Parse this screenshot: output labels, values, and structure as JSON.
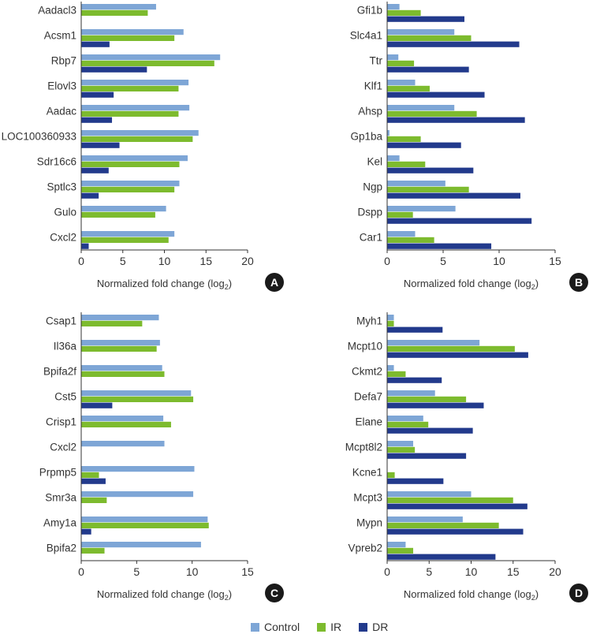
{
  "colors": {
    "Control": "#7ea6d6",
    "IR": "#7dbb2e",
    "DR": "#223a8c",
    "axis": "#333333",
    "text": "#333333"
  },
  "legend": [
    "Control",
    "IR",
    "DR"
  ],
  "chart_data": [
    {
      "panel": "A",
      "type": "bar",
      "orientation": "horizontal",
      "xlabel": "Normalized fold change (log",
      "xlabel_sub": "2",
      "xlabel_end": ")",
      "xlim": [
        0,
        20
      ],
      "xticks": [
        0,
        5,
        10,
        15,
        20
      ],
      "categories": [
        "Aadacl3",
        "Acsm1",
        "Rbp7",
        "Elovl3",
        "Aadac",
        "LOC100360933",
        "Sdr16c6",
        "Sptlc3",
        "Gulo",
        "Cxcl2"
      ],
      "series": [
        {
          "name": "Control",
          "values": [
            9.0,
            12.3,
            16.7,
            12.9,
            13.0,
            14.1,
            12.8,
            11.8,
            10.2,
            11.2
          ]
        },
        {
          "name": "IR",
          "values": [
            8.0,
            11.2,
            16.0,
            11.7,
            11.7,
            13.4,
            11.8,
            11.2,
            8.9,
            10.5
          ]
        },
        {
          "name": "DR",
          "values": [
            0,
            3.4,
            7.9,
            3.9,
            3.7,
            4.6,
            3.3,
            2.1,
            0,
            0.9
          ]
        }
      ]
    },
    {
      "panel": "B",
      "type": "bar",
      "orientation": "horizontal",
      "xlabel": "Normalized fold change (log",
      "xlabel_sub": "2",
      "xlabel_end": ")",
      "xlim": [
        0,
        15
      ],
      "xticks": [
        0,
        5,
        10,
        15
      ],
      "categories": [
        "Gfi1b",
        "Slc4a1",
        "Ttr",
        "Klf1",
        "Ahsp",
        "Gp1ba",
        "Kel",
        "Ngp",
        "Dspp",
        "Car1"
      ],
      "series": [
        {
          "name": "Control",
          "values": [
            1.1,
            6.0,
            1.0,
            2.5,
            6.0,
            0.2,
            1.1,
            5.2,
            6.1,
            2.5
          ]
        },
        {
          "name": "IR",
          "values": [
            3.0,
            7.5,
            2.4,
            3.8,
            8.0,
            3.0,
            3.4,
            7.3,
            2.3,
            4.2
          ]
        },
        {
          "name": "DR",
          "values": [
            6.9,
            11.8,
            7.3,
            8.7,
            12.3,
            6.6,
            7.7,
            11.9,
            12.9,
            9.3
          ]
        }
      ]
    },
    {
      "panel": "C",
      "type": "bar",
      "orientation": "horizontal",
      "xlabel": "Normalized fold change (log",
      "xlabel_sub": "2",
      "xlabel_end": ")",
      "xlim": [
        0,
        15
      ],
      "xticks": [
        0,
        5,
        10,
        15
      ],
      "categories": [
        "Csap1",
        "Il36a",
        "Bpifa2f",
        "Cst5",
        "Crisp1",
        "Cxcl2",
        "Prpmp5",
        "Smr3a",
        "Amy1a",
        "Bpifa2"
      ],
      "series": [
        {
          "name": "Control",
          "values": [
            7.0,
            7.1,
            7.3,
            9.9,
            7.4,
            7.5,
            10.2,
            10.1,
            11.4,
            10.8
          ]
        },
        {
          "name": "IR",
          "values": [
            5.5,
            6.8,
            7.5,
            10.1,
            8.1,
            0,
            1.6,
            2.3,
            11.5,
            2.1
          ]
        },
        {
          "name": "DR",
          "values": [
            0,
            0,
            0,
            2.8,
            0,
            0,
            2.2,
            0,
            0.9,
            0
          ]
        }
      ]
    },
    {
      "panel": "D",
      "type": "bar",
      "orientation": "horizontal",
      "xlabel": "Normalized fold change (log",
      "xlabel_sub": "2",
      "xlabel_end": ")",
      "xlim": [
        0,
        20
      ],
      "xticks": [
        0,
        5,
        10,
        15,
        20
      ],
      "categories": [
        "Myh1",
        "Mcpt10",
        "Ckmt2",
        "Defa7",
        "Elane",
        "Mcpt8l2",
        "Kcne1",
        "Mcpt3",
        "Mypn",
        "Vpreb2"
      ],
      "series": [
        {
          "name": "Control",
          "values": [
            0.8,
            11.0,
            0.8,
            5.7,
            4.3,
            3.1,
            0,
            10.0,
            9.0,
            2.2
          ]
        },
        {
          "name": "IR",
          "values": [
            0.8,
            15.2,
            2.2,
            9.4,
            4.9,
            3.3,
            0.9,
            15.0,
            13.3,
            3.1
          ]
        },
        {
          "name": "DR",
          "values": [
            6.6,
            16.8,
            6.5,
            11.5,
            10.2,
            9.4,
            6.7,
            16.7,
            16.2,
            12.9
          ]
        }
      ]
    }
  ]
}
